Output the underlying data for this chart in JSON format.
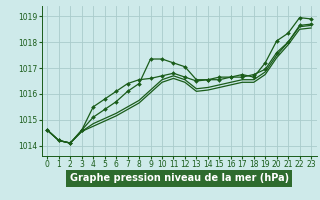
{
  "title": "Graphe pression niveau de la mer (hPa)",
  "bg_color": "#ceeaea",
  "grid_color": "#aacccc",
  "line_color": "#1a5c1a",
  "xlim": [
    -0.5,
    23.5
  ],
  "ylim": [
    1013.6,
    1019.4
  ],
  "yticks": [
    1014,
    1015,
    1016,
    1017,
    1018,
    1019
  ],
  "xticks": [
    0,
    1,
    2,
    3,
    4,
    5,
    6,
    7,
    8,
    9,
    10,
    11,
    12,
    13,
    14,
    15,
    16,
    17,
    18,
    19,
    20,
    21,
    22,
    23
  ],
  "series": [
    {
      "x": [
        0,
        1,
        2,
        3,
        4,
        5,
        6,
        7,
        8,
        9,
        10,
        11,
        12,
        13,
        14,
        15,
        16,
        17,
        18,
        19,
        20,
        21,
        22,
        23
      ],
      "y": [
        1014.6,
        1014.2,
        1014.1,
        1014.6,
        1015.1,
        1015.4,
        1015.7,
        1016.1,
        1016.4,
        1017.35,
        1017.35,
        1017.2,
        1017.05,
        1016.55,
        1016.55,
        1016.65,
        1016.65,
        1016.75,
        1016.65,
        1017.2,
        1018.05,
        1018.35,
        1018.95,
        1018.9
      ],
      "marker": true,
      "linewidth": 0.9
    },
    {
      "x": [
        0,
        1,
        2,
        3,
        4,
        5,
        6,
        7,
        8,
        9,
        10,
        11,
        12,
        13,
        14,
        15,
        16,
        17,
        18,
        19,
        20,
        21,
        22,
        23
      ],
      "y": [
        1014.6,
        1014.2,
        1014.1,
        1014.6,
        1015.5,
        1015.8,
        1016.1,
        1016.4,
        1016.55,
        1016.6,
        1016.7,
        1016.8,
        1016.65,
        1016.5,
        1016.55,
        1016.55,
        1016.65,
        1016.65,
        1016.75,
        1016.95,
        1017.6,
        1018.0,
        1018.65,
        1018.7
      ],
      "marker": true,
      "linewidth": 0.9
    },
    {
      "x": [
        0,
        1,
        2,
        3,
        4,
        5,
        6,
        7,
        8,
        9,
        10,
        11,
        12,
        13,
        14,
        15,
        16,
        17,
        18,
        19,
        20,
        21,
        22,
        23
      ],
      "y": [
        1014.6,
        1014.2,
        1014.1,
        1014.55,
        1014.85,
        1015.05,
        1015.25,
        1015.5,
        1015.75,
        1016.15,
        1016.55,
        1016.7,
        1016.55,
        1016.2,
        1016.25,
        1016.35,
        1016.45,
        1016.55,
        1016.55,
        1016.85,
        1017.5,
        1018.0,
        1018.6,
        1018.65
      ],
      "marker": false,
      "linewidth": 0.9
    },
    {
      "x": [
        0,
        1,
        2,
        3,
        4,
        5,
        6,
        7,
        8,
        9,
        10,
        11,
        12,
        13,
        14,
        15,
        16,
        17,
        18,
        19,
        20,
        21,
        22,
        23
      ],
      "y": [
        1014.6,
        1014.2,
        1014.1,
        1014.55,
        1014.75,
        1014.95,
        1015.15,
        1015.4,
        1015.65,
        1016.05,
        1016.45,
        1016.6,
        1016.45,
        1016.1,
        1016.15,
        1016.25,
        1016.35,
        1016.45,
        1016.45,
        1016.75,
        1017.4,
        1017.9,
        1018.5,
        1018.55
      ],
      "marker": false,
      "linewidth": 0.9
    }
  ],
  "title_fontsize": 7,
  "tick_fontsize": 5.5,
  "title_color": "#1a5c1a",
  "title_bg": "#2d7a2d",
  "title_text_color": "#ffffff"
}
